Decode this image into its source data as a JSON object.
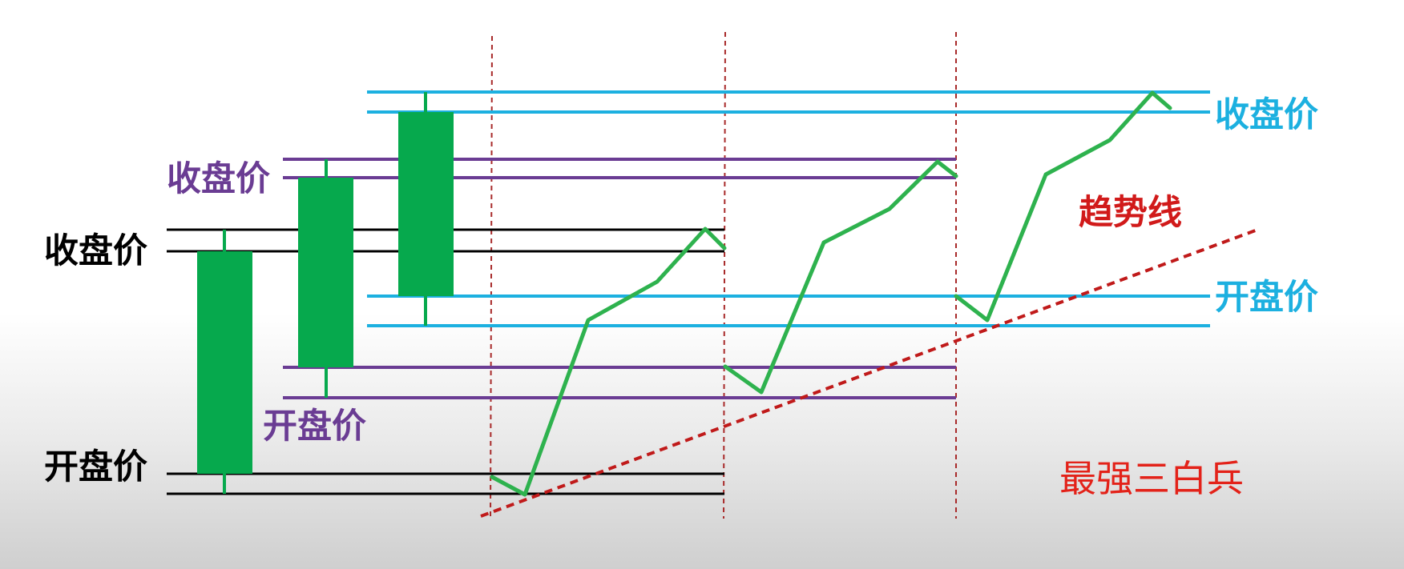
{
  "colors": {
    "black": "#000000",
    "purple": "#6a3c93",
    "cyan": "#1cb0e0",
    "candle": "#06a94d",
    "price_line": "#2eb24e",
    "trend": "#c01a1a",
    "guide": "#a82a2a",
    "title_red": "#e32219"
  },
  "labels": {
    "close_black": "收盘价",
    "open_black": "开盘价",
    "close_purple": "收盘价",
    "open_purple": "开盘价",
    "close_cyan": "收盘价",
    "open_cyan": "开盘价",
    "trend_line": "趋势线",
    "pattern": "最强三白兵"
  },
  "candles": [
    {
      "name": "candle-1",
      "color_key": "black"
    },
    {
      "name": "candle-2",
      "color_key": "purple"
    },
    {
      "name": "candle-3",
      "color_key": "cyan"
    }
  ]
}
